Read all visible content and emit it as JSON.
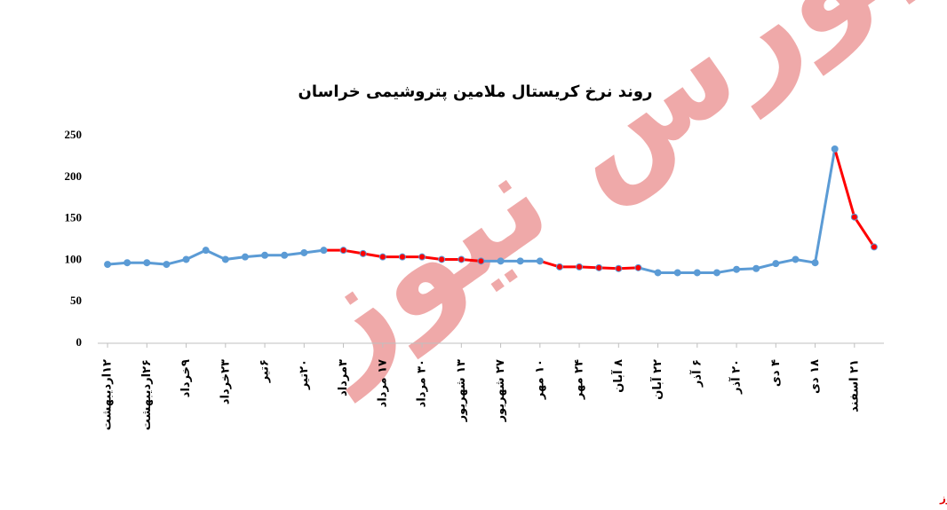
{
  "chart_data": {
    "type": "line",
    "title": "روند نرخ کریستال ملامین پتروشیمی خراسان",
    "watermark": "بورس نیوز",
    "source": "بورس نیوز",
    "categories": [
      "۱۲اردیبهشت",
      null,
      "۲۶اردیبهشت",
      null,
      "۹خرداد",
      null,
      "۲۳خرداد",
      null,
      "۶تیر",
      null,
      "۲۰تیر",
      null,
      "۳مرداد",
      null,
      "۱۷ مرداد",
      null,
      "۳۰ مرداد",
      null,
      "۱۳ شهریور",
      null,
      "۲۷ شهریور",
      null,
      "۱۰ مهر",
      null,
      "۲۴ مهر",
      null,
      "۸ آبان",
      null,
      "۲۲ آبان",
      null,
      "۶ آذر",
      null,
      "۲۰ آذر",
      null,
      "۴ دی",
      null,
      "۱۸ دی",
      null,
      "۲۱ اسفند",
      null
    ],
    "values": [
      95,
      97,
      97,
      95,
      101,
      112,
      101,
      104,
      106,
      106,
      109,
      112,
      112,
      108,
      104,
      104,
      104,
      101,
      101,
      99,
      99,
      99,
      99,
      92,
      92,
      91,
      90,
      91,
      85,
      85,
      85,
      85,
      89,
      90,
      96,
      101,
      97,
      234,
      152,
      116
    ],
    "colors": [
      "#5b9bd5",
      "#5b9bd5",
      "#5b9bd5",
      "#5b9bd5",
      "#5b9bd5",
      "#5b9bd5",
      "#5b9bd5",
      "#5b9bd5",
      "#5b9bd5",
      "#5b9bd5",
      "#5b9bd5",
      "#5b9bd5",
      "#ff0000",
      "#ff0000",
      "#ff0000",
      "#ff0000",
      "#ff0000",
      "#ff0000",
      "#ff0000",
      "#ff0000",
      "#5b9bd5",
      "#5b9bd5",
      "#5b9bd5",
      "#ff0000",
      "#ff0000",
      "#ff0000",
      "#ff0000",
      "#ff0000",
      "#5b9bd5",
      "#5b9bd5",
      "#5b9bd5",
      "#5b9bd5",
      "#5b9bd5",
      "#5b9bd5",
      "#5b9bd5",
      "#5b9bd5",
      "#5b9bd5",
      "#5b9bd5",
      "#ff0000",
      "#ff0000"
    ],
    "ylim": [
      0,
      250
    ],
    "yticks": [
      0,
      50,
      100,
      150,
      200,
      250
    ],
    "grid": false
  }
}
